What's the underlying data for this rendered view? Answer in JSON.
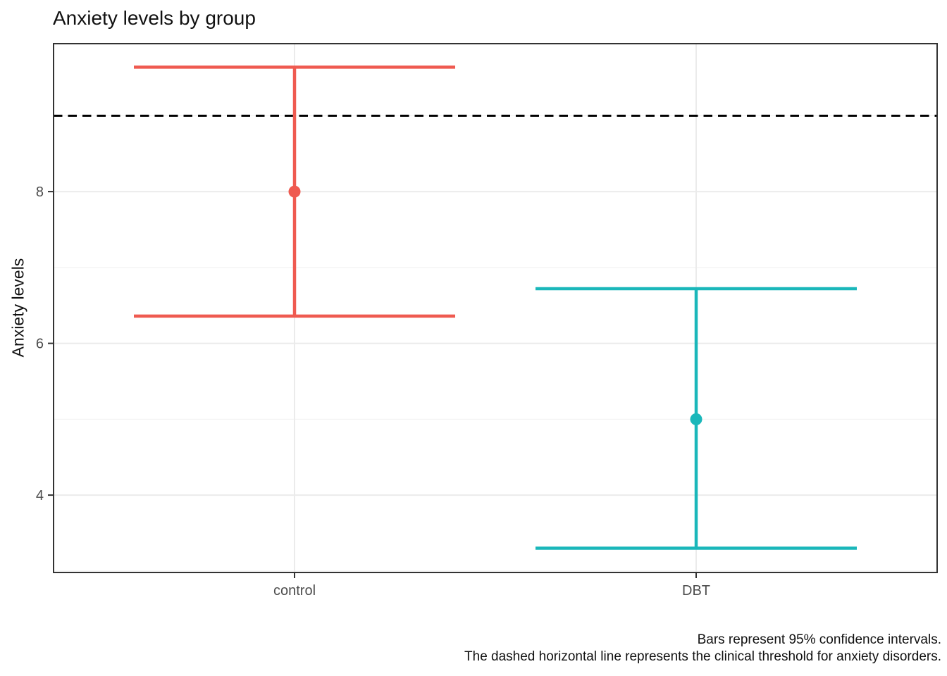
{
  "chart_data": {
    "type": "scatter",
    "subtype": "pointrange-errorbar",
    "title": "Anxiety levels by group",
    "xlabel": "",
    "ylabel": "Anxiety levels",
    "categories": [
      "control",
      "DBT"
    ],
    "series": [
      {
        "name": "control",
        "mean": 8.0,
        "ci_lower": 6.36,
        "ci_upper": 9.64,
        "color": "#EF5A50"
      },
      {
        "name": "DBT",
        "mean": 5.0,
        "ci_lower": 3.3,
        "ci_upper": 6.72,
        "color": "#1AB7BA"
      }
    ],
    "threshold_line": {
      "value": 9.0,
      "style": "dashed",
      "color": "#000000"
    },
    "y_ticks": [
      4,
      6,
      8
    ],
    "y_minor_ticks": [
      3,
      5,
      7,
      9
    ],
    "ylim": [
      2.98,
      9.95
    ],
    "grid": true,
    "legend_position": "none",
    "caption_lines": [
      "Bars represent 95% confidence intervals.",
      "The dashed horizontal line represents the clinical threshold for anxiety disorders."
    ]
  },
  "colors": {
    "background": "#FFFFFF",
    "grid_major": "#EBEBEB",
    "grid_minor": "#F3F3F3",
    "panel_border": "#333333",
    "tick_mark": "#333333",
    "axis_text": "#4D4D4D",
    "title_text": "#111111"
  }
}
